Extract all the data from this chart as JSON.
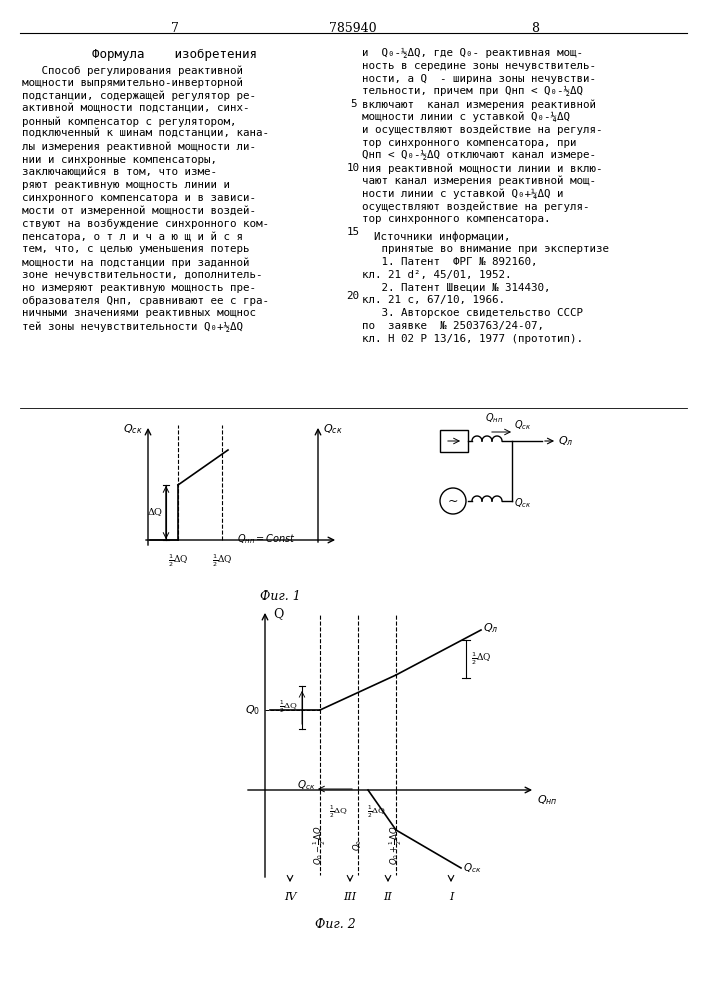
{
  "title_text": "785940",
  "page_left": "7",
  "page_right": "8",
  "formula_title": "Формула    изобретения",
  "left_col_lines": [
    "   Способ регулирования реактивной",
    "мощности выпрямительно-инверторной",
    "подстанции, содержащей регулятор ре-",
    "активной мощности подстанции, синх-",
    "ронный компенсатор с регулятором,",
    "подключенный к шинам подстанции, кана-",
    "лы измерения реактивной мощности ли-",
    "нии и синхронные компенсаторы,",
    "заключающийся в том, что изме-",
    "ряют реактивную мощность линии и",
    "синхронного компенсатора и в зависи-",
    "мости от измеренной мощности воздей-",
    "ствуют на возбуждение синхронного ком-",
    "пенсатора, о т л и ч а ю щ и й с я",
    "тем, что, с целью уменьшения потерь",
    "мощности на подстанции при заданной",
    "зоне нечувствительности, дополнитель-",
    "но измеряют реактивную мощность пре-",
    "образователя Qнп, сравнивают ее с гра-",
    "ничными значениями реактивных мощнос",
    "тей зоны нечувствительности Q₀+½ΔQ"
  ],
  "right_col_lines": [
    "и  Q₀-½ΔQ, где Q₀- реактивная мощ-",
    "ность в середине зоны нечувствитель-",
    "ности, а Q  - ширина зоны нечувстви-",
    "тельности, причем при Qнп < Q₀-½ΔQ",
    "включают  канал измерения реактивной",
    "мощности линии с уставкой Q₀-¼ΔQ",
    "и осуществляют воздействие на регуля-",
    "тор синхронного компенсатора, при",
    "Qнп < Q₀-½ΔQ отключают канал измере-",
    "ния реактивной мощности линии и вклю-",
    "чают канал измерения реактивной мощ-",
    "ности линии с уставкой Q₀+¼ΔQ и",
    "осуществляют воздействие на регуля-",
    "тор синхронного компенсатора."
  ],
  "line_nums": [
    [
      5,
      4
    ],
    [
      10,
      9
    ],
    [
      15,
      14
    ],
    [
      20,
      19
    ]
  ],
  "src_title": "Источники информации,",
  "src_sub": "   принятые во внимание при экспертизе",
  "src1a": "   1. Патент  ФРГ № 892160,",
  "src1b": "кл. 21 d², 45/01, 1952.",
  "src2a": "   2. Патент Швеции № 314430,",
  "src2b": "кл. 21 с, 67/10, 1966.",
  "src3a": "   3. Авторское свидетельство СССР",
  "src3b": "по  заявке  № 2503763/24-07,",
  "src3c": "кл. Н 02 Р 13/16, 1977 (прототип).",
  "fig1_caption": "Фиг. 1",
  "fig2_caption": "Фиг. 2",
  "bg": "#ffffff"
}
